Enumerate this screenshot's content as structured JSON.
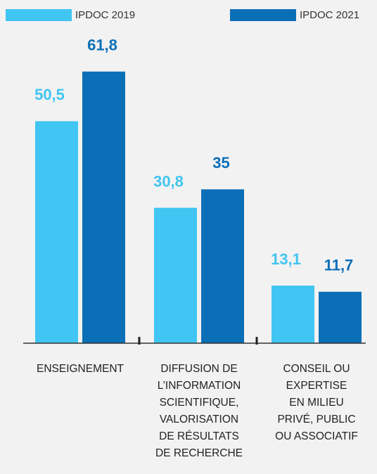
{
  "chart_data": {
    "type": "bar",
    "categories": [
      [
        "ENSEIGNEMENT"
      ],
      [
        "DIFFUSION DE",
        "L’INFORMATION",
        "SCIENTIFIQUE,",
        "VALORISATION",
        "DE RÉSULTATS",
        "DE RECHERCHE"
      ],
      [
        "CONSEIL OU",
        "EXPERTISE",
        "EN MILIEU",
        "PRIVÉ, PUBLIC",
        "OU ASSOCIATIF"
      ]
    ],
    "series": [
      {
        "name": "IPDOC 2019",
        "color": "#41c5f2",
        "values": [
          50.5,
          30.8,
          13.1
        ],
        "value_labels": [
          "50,5",
          "30,8",
          "13,1"
        ]
      },
      {
        "name": "IPDOC 2021",
        "color": "#0b6fb7",
        "values": [
          61.8,
          35,
          11.7
        ],
        "value_labels": [
          "61,8",
          "35",
          "11,7"
        ]
      }
    ]
  }
}
